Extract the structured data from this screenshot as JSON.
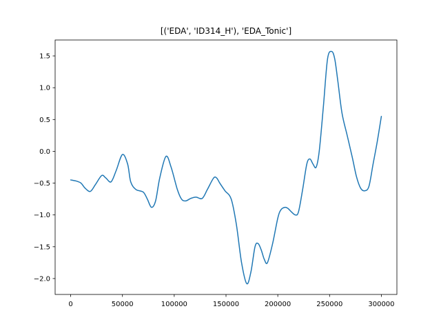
{
  "chart_data": {
    "type": "line",
    "title": "[('EDA', 'ID314_H'), 'EDA_Tonic']",
    "xlabel": "",
    "ylabel": "",
    "xlim": [
      -15000,
      315000
    ],
    "ylim": [
      -2.25,
      1.75
    ],
    "grid": false,
    "legend": "none",
    "line_color": "#1f77b4",
    "xticks": [
      {
        "value": 0,
        "label": "0"
      },
      {
        "value": 50000,
        "label": "50000"
      },
      {
        "value": 100000,
        "label": "100000"
      },
      {
        "value": 150000,
        "label": "150000"
      },
      {
        "value": 200000,
        "label": "200000"
      },
      {
        "value": 250000,
        "label": "250000"
      },
      {
        "value": 300000,
        "label": "300000"
      }
    ],
    "yticks": [
      {
        "value": -2.0,
        "label": "−2.0"
      },
      {
        "value": -1.5,
        "label": "−1.5"
      },
      {
        "value": -1.0,
        "label": "−1.0"
      },
      {
        "value": -0.5,
        "label": "−0.5"
      },
      {
        "value": 0.0,
        "label": "0.0"
      },
      {
        "value": 0.5,
        "label": "0.5"
      },
      {
        "value": 1.0,
        "label": "1.0"
      },
      {
        "value": 1.5,
        "label": "1.5"
      }
    ],
    "series": [
      {
        "x": [
          0,
          6000,
          10000,
          14000,
          19000,
          24000,
          30000,
          34000,
          39000,
          44000,
          50000,
          55000,
          58000,
          63000,
          70000,
          74000,
          78000,
          82000,
          86000,
          92000,
          97000,
          103000,
          107000,
          111000,
          116000,
          121000,
          127000,
          132000,
          138000,
          141000,
          144000,
          149000,
          155000,
          160000,
          165000,
          170000,
          174000,
          178000,
          181000,
          184000,
          187000,
          190000,
          195000,
          200000,
          203000,
          207000,
          210000,
          213000,
          217000,
          220000,
          224000,
          228000,
          231000,
          234000,
          237000,
          240000,
          244000,
          248000,
          252000,
          255000,
          258000,
          262000,
          267000,
          272000,
          276000,
          280000,
          284000,
          288000,
          292000,
          296000,
          300000
        ],
        "y": [
          -0.45,
          -0.47,
          -0.5,
          -0.58,
          -0.63,
          -0.52,
          -0.38,
          -0.42,
          -0.48,
          -0.3,
          -0.05,
          -0.2,
          -0.48,
          -0.6,
          -0.64,
          -0.75,
          -0.88,
          -0.78,
          -0.42,
          -0.08,
          -0.25,
          -0.6,
          -0.75,
          -0.78,
          -0.74,
          -0.72,
          -0.74,
          -0.6,
          -0.42,
          -0.42,
          -0.5,
          -0.62,
          -0.75,
          -1.15,
          -1.75,
          -2.08,
          -1.9,
          -1.5,
          -1.45,
          -1.55,
          -1.7,
          -1.75,
          -1.45,
          -1.05,
          -0.92,
          -0.88,
          -0.9,
          -0.95,
          -1.0,
          -0.95,
          -0.6,
          -0.2,
          -0.12,
          -0.2,
          -0.25,
          0.0,
          0.7,
          1.45,
          1.57,
          1.45,
          1.1,
          0.6,
          0.25,
          -0.1,
          -0.4,
          -0.58,
          -0.62,
          -0.55,
          -0.2,
          0.15,
          0.55
        ]
      }
    ]
  }
}
